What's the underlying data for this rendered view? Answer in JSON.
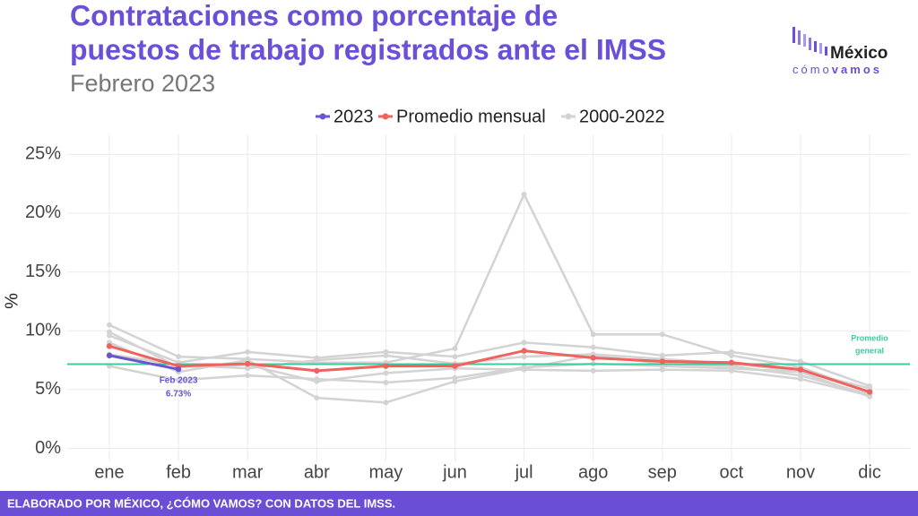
{
  "chart_data": {
    "type": "line",
    "title": [
      "Contrataciones como porcentaje de",
      "puestos de trabajo registrados ante el IMSS"
    ],
    "subtitle": "Febrero 2023",
    "y_label": "%",
    "categories": [
      "ene",
      "feb",
      "mar",
      "abr",
      "may",
      "jun",
      "jul",
      "ago",
      "sep",
      "oct",
      "nov",
      "dic"
    ],
    "ylim": [
      -1.1,
      26.7
    ],
    "yticks": [
      {
        "value": 0,
        "label": "0%"
      },
      {
        "value": 5,
        "label": "5%"
      },
      {
        "value": 10,
        "label": "10%"
      },
      {
        "value": 15,
        "label": "15%"
      },
      {
        "value": 20,
        "label": "20%"
      },
      {
        "value": 25,
        "label": "25%"
      }
    ],
    "grid": true,
    "background": {
      "name": "2000-2022",
      "color": "#d3d3d3",
      "lines": [
        [
          10.5,
          7.8,
          7.6,
          7.3,
          7.3,
          8.5,
          21.6,
          9.7,
          9.7,
          7.9,
          6.9,
          4.8
        ],
        [
          7.0,
          5.8,
          6.2,
          5.9,
          5.6,
          6.0,
          6.9,
          7.2,
          7.0,
          6.8,
          6.5,
          4.4
        ],
        [
          9.0,
          6.5,
          7.5,
          4.3,
          3.9,
          5.7,
          6.8,
          7.9,
          7.2,
          7.0,
          6.2,
          4.6
        ],
        [
          9.6,
          7.3,
          8.2,
          7.7,
          8.2,
          7.8,
          9.0,
          8.6,
          7.9,
          8.2,
          7.4,
          5.3
        ],
        [
          8.0,
          7.1,
          6.8,
          7.5,
          7.9,
          7.2,
          7.8,
          8.0,
          7.6,
          7.2,
          6.6,
          5.1
        ],
        [
          9.9,
          6.9,
          7.1,
          5.7,
          6.4,
          6.8,
          6.7,
          6.6,
          6.7,
          6.6,
          5.9,
          4.5
        ]
      ]
    },
    "reference_line": {
      "value": 7.16,
      "label_lines": [
        "Promedio",
        "general"
      ],
      "color": "#3fc9a0"
    },
    "series": [
      {
        "name": "2023",
        "color": "#6a55d0",
        "values": [
          7.9,
          6.73,
          null,
          null,
          null,
          null,
          null,
          null,
          null,
          null,
          null,
          null
        ],
        "value_labels": [
          null,
          "6.73%",
          null,
          null,
          null,
          null,
          null,
          null,
          null,
          null,
          null,
          null
        ]
      },
      {
        "name": "Promedio mensual",
        "color": "#f0625e",
        "values": [
          8.7,
          7.0,
          7.2,
          6.6,
          7.0,
          7.0,
          8.3,
          7.7,
          7.4,
          7.3,
          6.7,
          4.8
        ]
      }
    ],
    "annotation": "Feb 2023",
    "logo": {
      "name": "México",
      "tagline": [
        "cómo",
        "vamos"
      ]
    },
    "footer": "ELABORADO POR MÉXICO, ¿CÓMO VAMOS? CON DATOS DEL IMSS."
  }
}
